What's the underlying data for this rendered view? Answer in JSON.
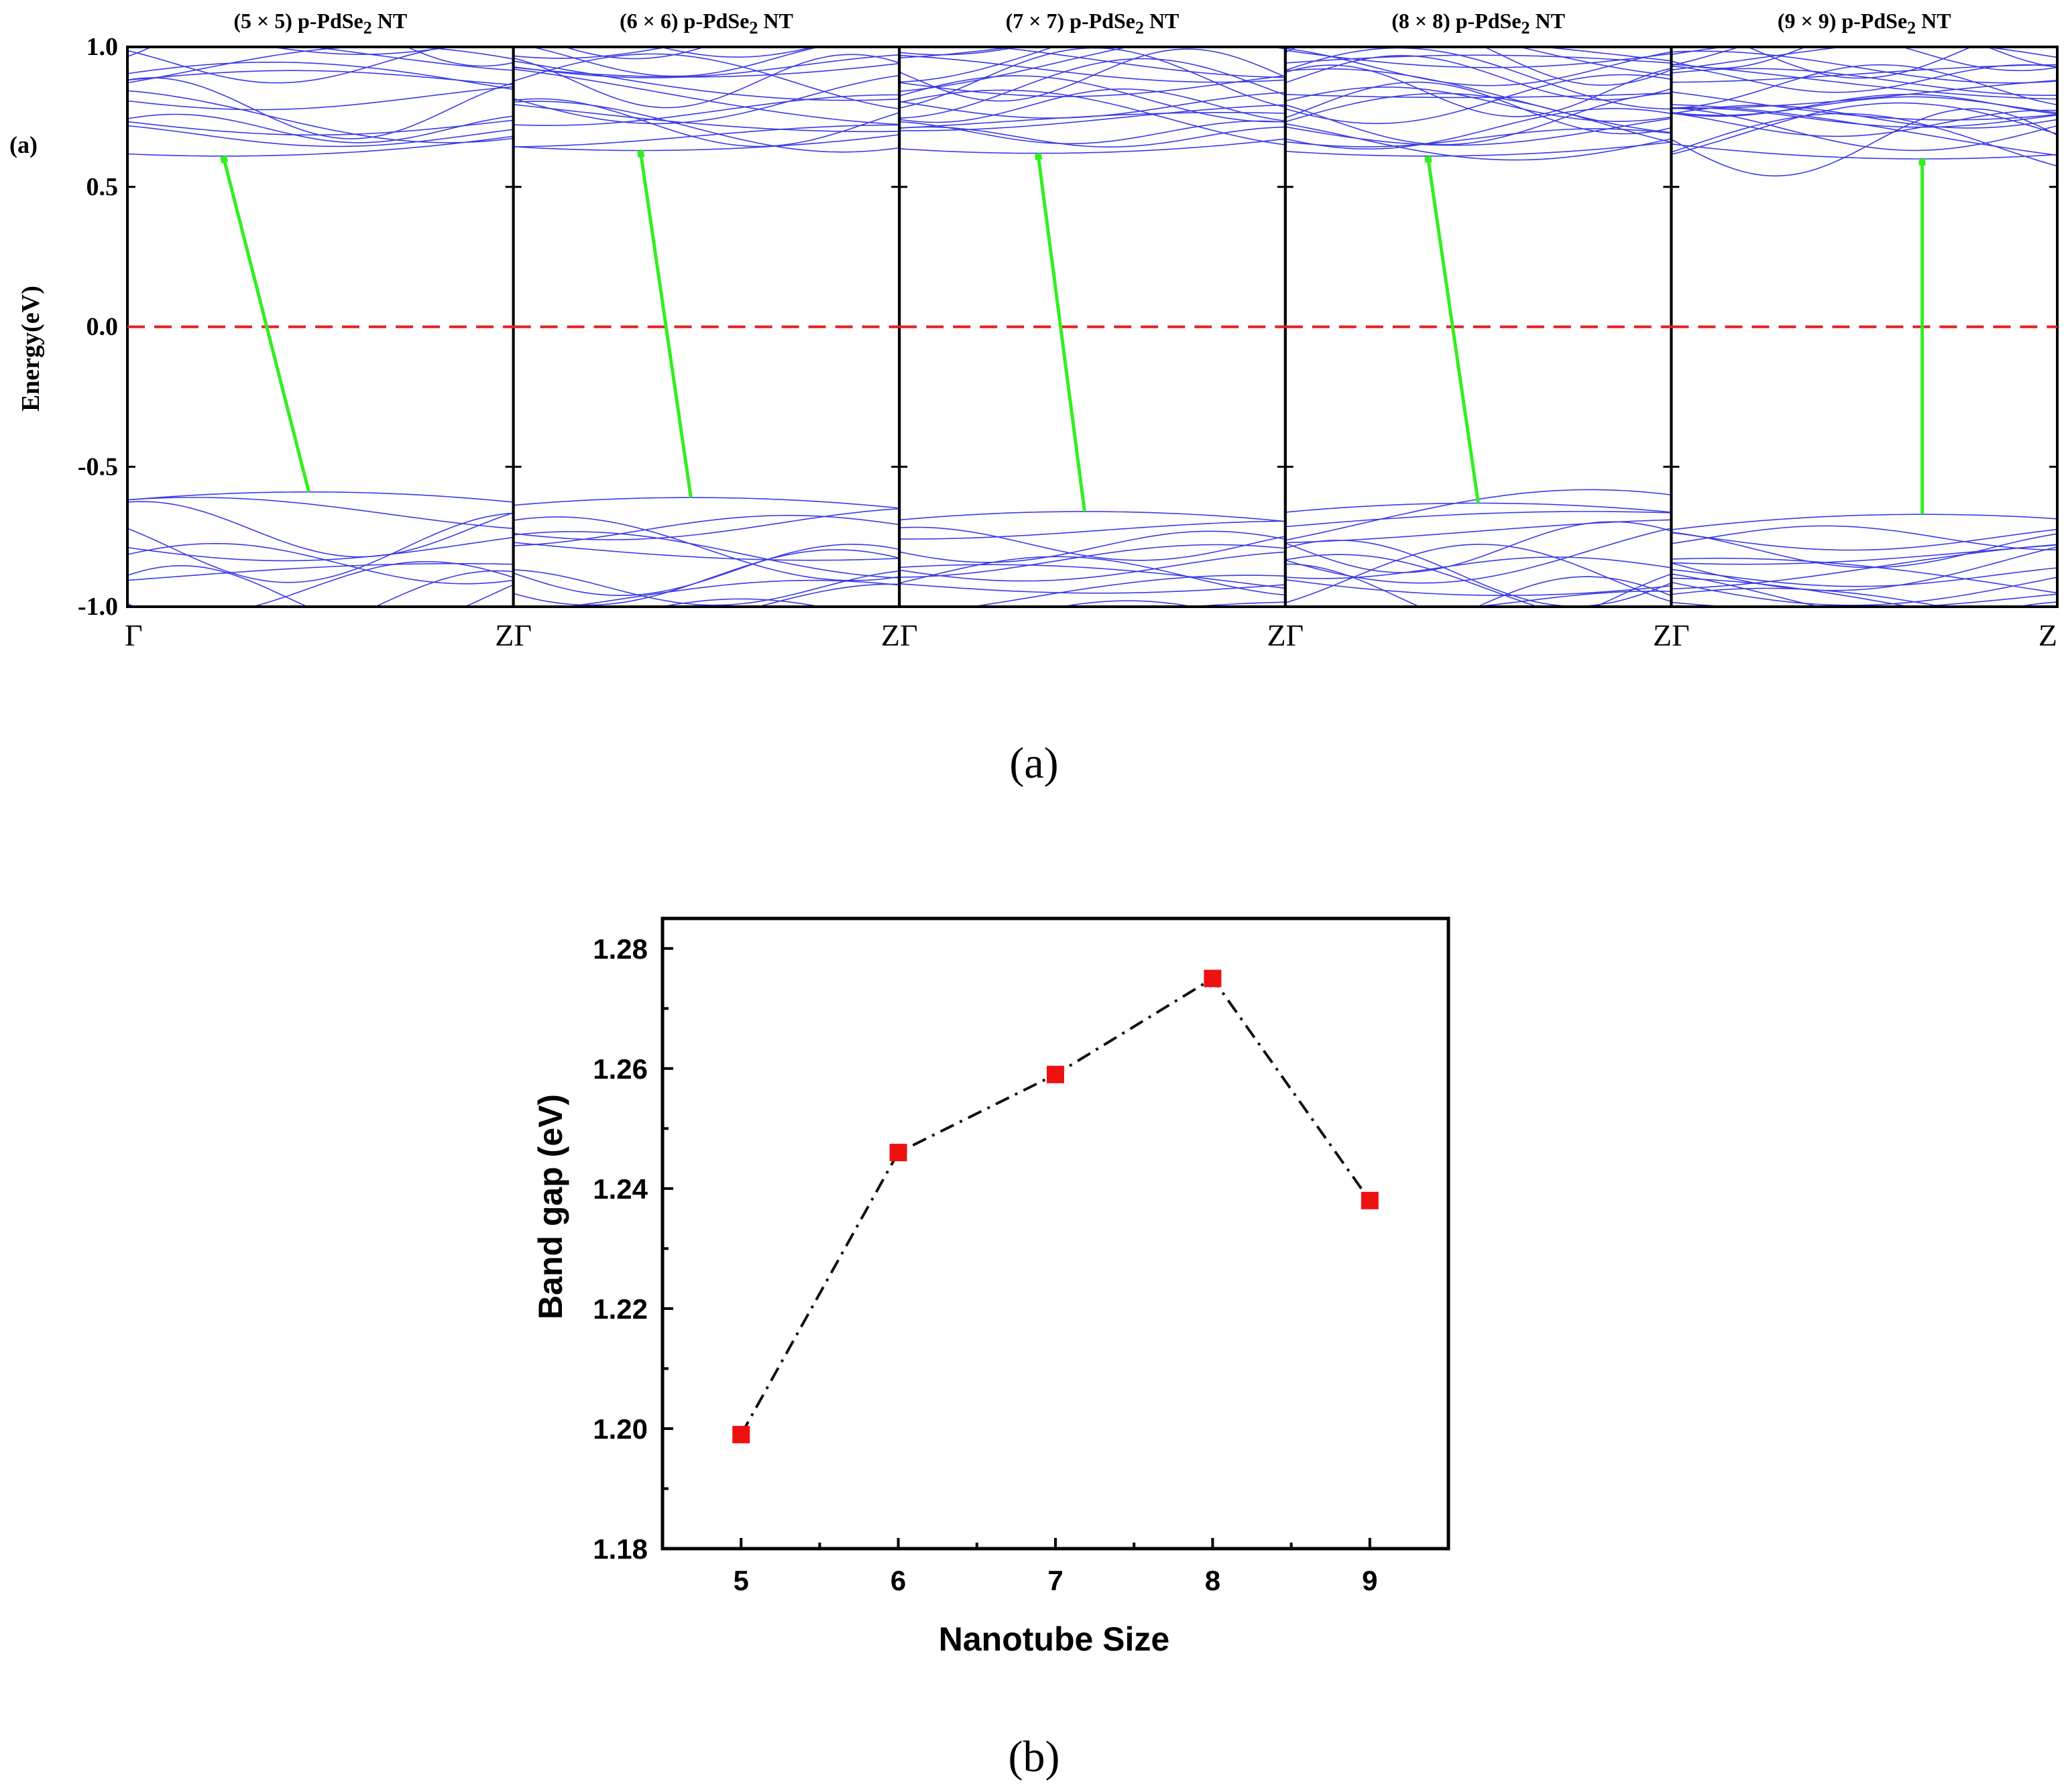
{
  "panel_a": {
    "caption": "(a)",
    "panel_tag": "(a)",
    "colors": {
      "bands": "#3b3be6",
      "fermi": "#e02020",
      "arrow": "#33ee22",
      "frame": "#000000"
    },
    "chart_data": {
      "type": "line",
      "title": "",
      "xlabel": "",
      "ylabel": "Energy(eV)",
      "ylim": [
        -1.0,
        1.0
      ],
      "yticks": [
        "1.0",
        "0.5",
        "0.0",
        "-0.5",
        "-1.0"
      ],
      "ytick_values": [
        1.0,
        0.5,
        0.0,
        -0.5,
        -1.0
      ],
      "fermi_level": 0.0,
      "kpoint_labels": [
        "Γ",
        "ZΓ",
        "ZΓ",
        "ZΓ",
        "ZΓ",
        "Z"
      ],
      "panels": [
        {
          "title_prefix": "(5 × 5) p-PdSe",
          "title_sub": "2",
          "title_suffix": " NT",
          "label": "(5 × 5) p-PdSe2 NT",
          "vbm_k": 0.47,
          "vbm_E": -0.59,
          "cbm_k": 0.25,
          "cbm_E": 0.61
        },
        {
          "title_prefix": "(6 × 6) p-PdSe",
          "title_sub": "2",
          "title_suffix": " NT",
          "label": "(6 × 6) p-PdSe2 NT",
          "vbm_k": 0.46,
          "vbm_E": -0.61,
          "cbm_k": 0.33,
          "cbm_E": 0.63
        },
        {
          "title_prefix": "(7 × 7) p-PdSe",
          "title_sub": "2",
          "title_suffix": " NT",
          "label": "(7 × 7) p-PdSe2 NT",
          "vbm_k": 0.48,
          "vbm_E": -0.66,
          "cbm_k": 0.36,
          "cbm_E": 0.62
        },
        {
          "title_prefix": "(8 × 8) p-PdSe",
          "title_sub": "2",
          "title_suffix": " NT",
          "label": "(8 × 8) p-PdSe2 NT",
          "vbm_k": 0.5,
          "vbm_E": -0.63,
          "cbm_k": 0.37,
          "cbm_E": 0.61
        },
        {
          "title_prefix": "(9 × 9) p-PdSe",
          "title_sub": "2",
          "title_suffix": " NT",
          "label": "(9 × 9) p-PdSe2 NT",
          "vbm_k": 0.65,
          "vbm_E": -0.67,
          "cbm_k": 0.65,
          "cbm_E": 0.6
        }
      ]
    }
  },
  "panel_b": {
    "caption": "(b)",
    "colors": {
      "marker": "#ee1111",
      "line": "#111111"
    },
    "chart_data": {
      "type": "scatter",
      "title": "",
      "xlabel": "Nanotube Size",
      "ylabel": "Band gap (eV)",
      "x": [
        5,
        6,
        7,
        8,
        9
      ],
      "values": [
        1.199,
        1.246,
        1.259,
        1.275,
        1.238
      ],
      "xlim": [
        4.5,
        9.5
      ],
      "ylim": [
        1.18,
        1.285
      ],
      "xticks": [
        "5",
        "6",
        "7",
        "8",
        "9"
      ],
      "xtick_values": [
        5,
        6,
        7,
        8,
        9
      ],
      "yticks": [
        "1.18",
        "1.20",
        "1.22",
        "1.24",
        "1.26",
        "1.28"
      ],
      "ytick_values": [
        1.18,
        1.2,
        1.22,
        1.24,
        1.26,
        1.28
      ],
      "line_style": "dash-dot",
      "marker": "square"
    }
  }
}
